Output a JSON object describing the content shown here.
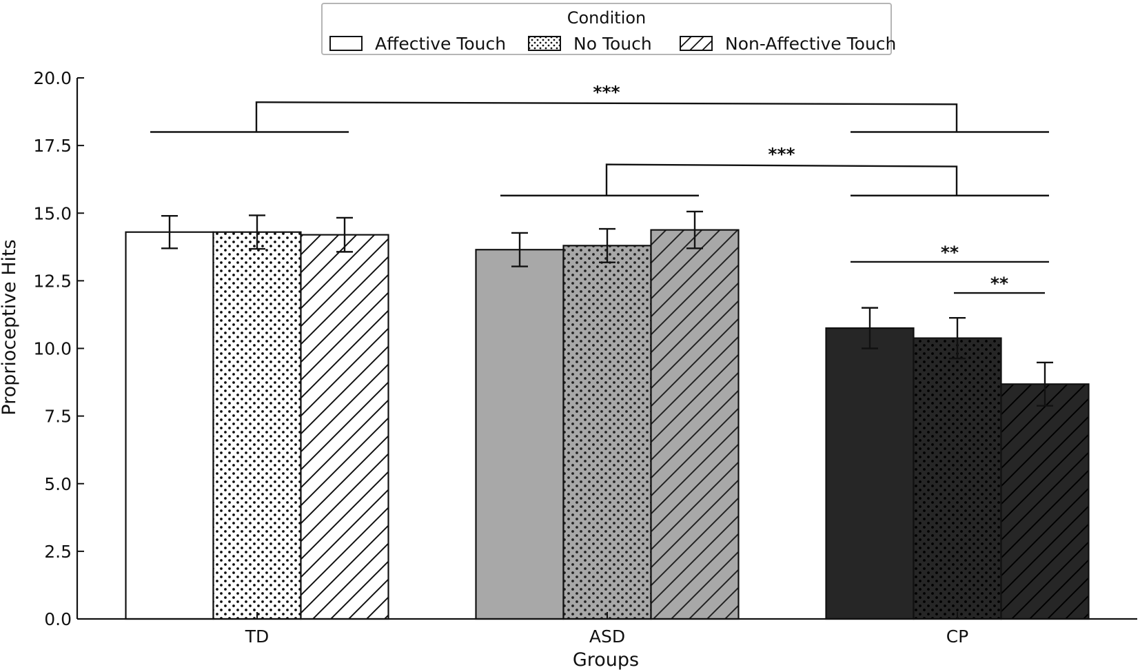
{
  "chart_data": {
    "type": "bar",
    "title": "",
    "xlabel": "Groups",
    "ylabel": "Proprioceptive Hits",
    "ylim": [
      0,
      20
    ],
    "yticks": [
      "0.0",
      "2.5",
      "5.0",
      "7.5",
      "10.0",
      "12.5",
      "15.0",
      "17.5",
      "20.0"
    ],
    "categories": [
      "TD",
      "ASD",
      "CP"
    ],
    "legend": {
      "title": "Condition",
      "position": "top-center"
    },
    "series": [
      {
        "name": "Affective Touch",
        "pattern": "solid",
        "values": [
          14.3,
          13.65,
          10.75
        ],
        "errors": [
          0.6,
          0.62,
          0.75
        ]
      },
      {
        "name": "No Touch",
        "pattern": "dots",
        "values": [
          14.3,
          13.8,
          10.38
        ],
        "errors": [
          0.62,
          0.62,
          0.75
        ]
      },
      {
        "name": "Non-Affective Touch",
        "pattern": "hatch",
        "values": [
          14.2,
          14.38,
          8.68
        ],
        "errors": [
          0.63,
          0.68,
          0.8
        ]
      }
    ],
    "group_colors": [
      "#ffffff",
      "#a8a8a8",
      "#262626"
    ],
    "significance": [
      {
        "label": "***",
        "from_group": 0,
        "to_group": 2,
        "bracket": 1,
        "y": 19.1
      },
      {
        "label": "***",
        "from_group": 1,
        "to_group": 2,
        "bracket": 2,
        "y": 16.8
      },
      {
        "label": "**",
        "group": 2,
        "from_series": 0,
        "to_series": 2,
        "y": 13.2
      },
      {
        "label": "**",
        "group": 2,
        "from_series": 1,
        "to_series": 2,
        "y": 12.05
      }
    ]
  }
}
